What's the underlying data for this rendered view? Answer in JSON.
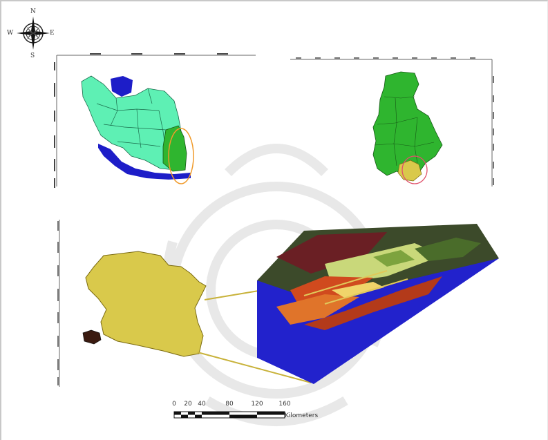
{
  "compass": {
    "north": "N",
    "south": "S",
    "west": "W",
    "east": "E"
  },
  "scale_bar": {
    "ticks": [
      "0",
      "20",
      "40",
      "80",
      "120",
      "160"
    ],
    "unit": "Kilometers"
  },
  "colors": {
    "iran_provinces": "#5ef0b4",
    "study_province": "#2fb52f",
    "sea": "#1d1dc8",
    "study_area": "#d9c94b",
    "highlight_circle": "#f09a2a",
    "dem_base": "#2222cc"
  },
  "icons": [
    "compass-rose-icon"
  ]
}
